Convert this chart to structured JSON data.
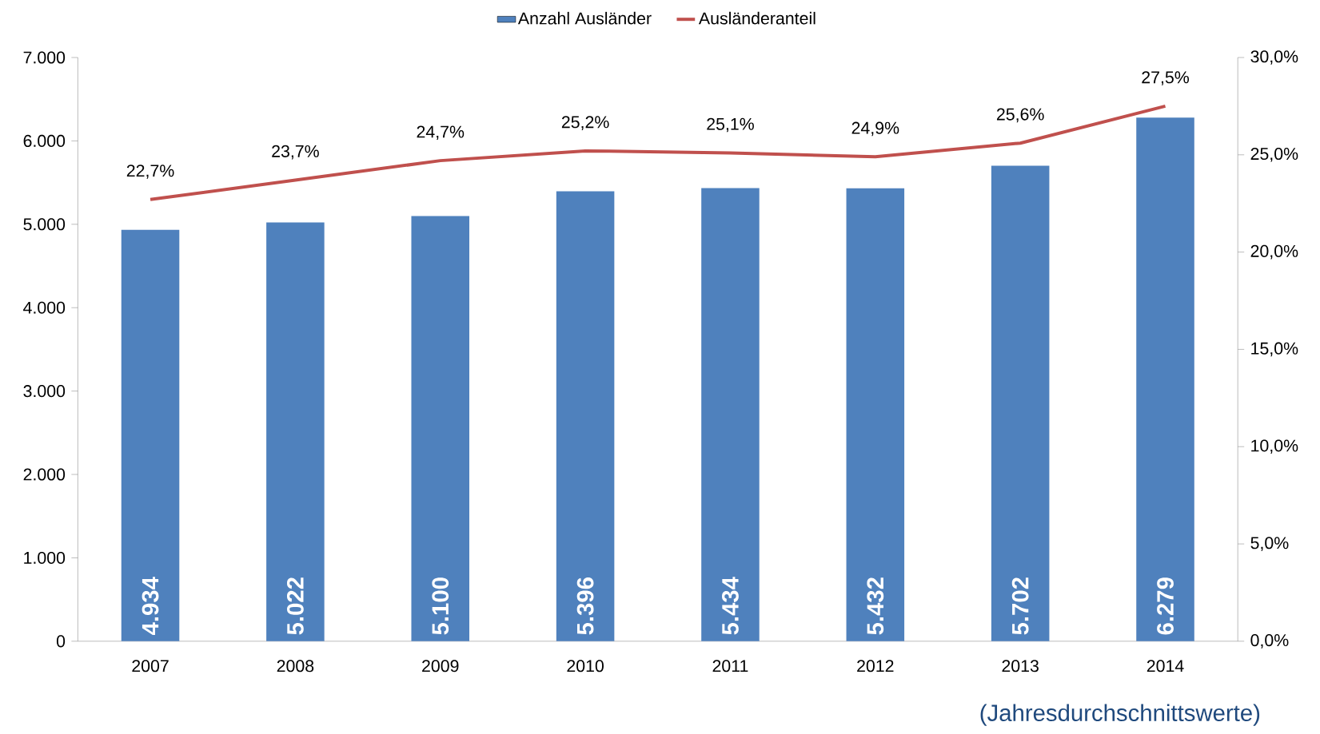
{
  "chart_data": {
    "type": "bar",
    "categories": [
      "2007",
      "2008",
      "2009",
      "2010",
      "2011",
      "2012",
      "2013",
      "2014"
    ],
    "series": [
      {
        "name": "Anzahl Ausländer",
        "color": "#4f81bd",
        "values": [
          4934,
          5022,
          5100,
          5396,
          5434,
          5432,
          5702,
          6279
        ],
        "value_labels": [
          "4.934",
          "5.022",
          "5.100",
          "5.396",
          "5.434",
          "5.432",
          "5.702",
          "6.279"
        ]
      },
      {
        "name": "Ausländeranteil",
        "type": "line",
        "axis": "y2",
        "color": "#c0504d",
        "values": [
          22.7,
          23.7,
          24.7,
          25.2,
          25.1,
          24.9,
          25.6,
          27.5
        ],
        "value_labels": [
          "22,7%",
          "23,7%",
          "24,7%",
          "25,2%",
          "25,1%",
          "24,9%",
          "25,6%",
          "27,5%"
        ]
      }
    ],
    "ylim": [
      0,
      7000
    ],
    "yticks": [
      0,
      {
        "value": 1000,
        "label": "1.000"
      },
      {
        "value": 2000,
        "label": "2.000"
      },
      {
        "value": 3000,
        "label": "3.000"
      },
      {
        "value": 4000,
        "label": "4.000"
      },
      {
        "value": 5000,
        "label": "5.000"
      },
      {
        "value": 6000,
        "label": "6.000"
      },
      {
        "value": 7000,
        "label": "7.000"
      }
    ],
    "y2lim": [
      0,
      30
    ],
    "y2ticks": [
      {
        "value": 0,
        "label": "0,0%"
      },
      {
        "value": 5,
        "label": "5,0%"
      },
      {
        "value": 10,
        "label": "10,0%"
      },
      {
        "value": 15,
        "label": "15,0%"
      },
      {
        "value": 20,
        "label": "20,0%"
      },
      {
        "value": 25,
        "label": "25,0%"
      },
      {
        "value": 30,
        "label": "30,0%"
      }
    ],
    "legend": "top",
    "grid": false,
    "annotations": [
      "(Jahresdurchschnittswerte)"
    ]
  }
}
